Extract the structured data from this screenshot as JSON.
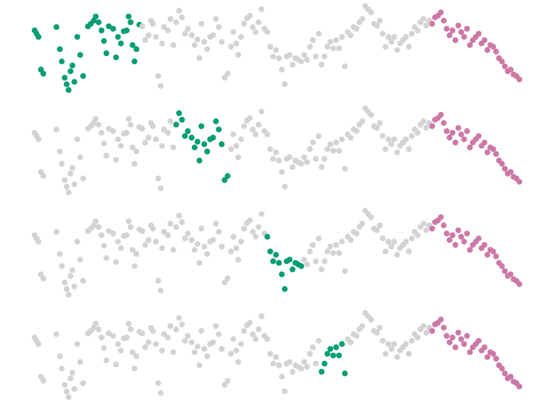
{
  "chart_data": [
    {
      "type": "scatter",
      "title": "",
      "xlabel": "",
      "ylabel": "",
      "xlim": [
        0,
        100
      ],
      "ylim": [
        0,
        100
      ],
      "axes_visible": false,
      "grid": false,
      "legend": "none",
      "series": [
        {
          "role": "background",
          "color": "#d3d3d3"
        },
        {
          "role": "highlight-window",
          "color": "#009e73",
          "x_range": [
            0,
            22
          ]
        },
        {
          "role": "reference-window",
          "color": "#cc79a7",
          "x_range": [
            82,
            100
          ]
        }
      ]
    },
    {
      "type": "scatter",
      "title": "",
      "xlabel": "",
      "ylabel": "",
      "xlim": [
        0,
        100
      ],
      "ylim": [
        0,
        100
      ],
      "axes_visible": false,
      "grid": false,
      "legend": "none",
      "series": [
        {
          "role": "background",
          "color": "#d3d3d3"
        },
        {
          "role": "highlight-window",
          "color": "#009e73",
          "x_range": [
            29,
            40
          ]
        },
        {
          "role": "reference-window",
          "color": "#cc79a7",
          "x_range": [
            82,
            100
          ]
        }
      ]
    },
    {
      "type": "scatter",
      "title": "",
      "xlabel": "",
      "ylabel": "",
      "xlim": [
        0,
        100
      ],
      "ylim": [
        0,
        100
      ],
      "axes_visible": false,
      "grid": false,
      "legend": "none",
      "series": [
        {
          "role": "background",
          "color": "#d3d3d3"
        },
        {
          "role": "highlight-window",
          "color": "#009e73",
          "x_range": [
            48,
            55
          ]
        },
        {
          "role": "reference-window",
          "color": "#cc79a7",
          "x_range": [
            82,
            100
          ]
        }
      ]
    },
    {
      "type": "scatter",
      "title": "",
      "xlabel": "",
      "ylabel": "",
      "xlim": [
        0,
        100
      ],
      "ylim": [
        0,
        100
      ],
      "axes_visible": false,
      "grid": false,
      "legend": "none",
      "series": [
        {
          "role": "background",
          "color": "#d3d3d3"
        },
        {
          "role": "highlight-window",
          "color": "#009e73",
          "x_range": [
            59,
            64
          ]
        },
        {
          "role": "reference-window",
          "color": "#cc79a7",
          "x_range": [
            82,
            100
          ]
        }
      ]
    }
  ],
  "points": [
    [
      0.0,
      78
    ],
    [
      0.4,
      74
    ],
    [
      0.8,
      70
    ],
    [
      1.3,
      30
    ],
    [
      1.8,
      25
    ],
    [
      4.5,
      82
    ],
    [
      5.2,
      55
    ],
    [
      5.6,
      40
    ],
    [
      6.2,
      20
    ],
    [
      6.6,
      12
    ],
    [
      7.0,
      5
    ],
    [
      7.4,
      28
    ],
    [
      7.8,
      35
    ],
    [
      8.2,
      15
    ],
    [
      8.8,
      70
    ],
    [
      9.4,
      48
    ],
    [
      10.0,
      22
    ],
    [
      11.0,
      83
    ],
    [
      11.6,
      86
    ],
    [
      12.2,
      90
    ],
    [
      12.6,
      95
    ],
    [
      13.2,
      88
    ],
    [
      13.8,
      78
    ],
    [
      14.3,
      65
    ],
    [
      14.8,
      50
    ],
    [
      15.3,
      83
    ],
    [
      16.2,
      80
    ],
    [
      16.8,
      45
    ],
    [
      17.2,
      70
    ],
    [
      17.8,
      62
    ],
    [
      18.4,
      77
    ],
    [
      19.0,
      78
    ],
    [
      19.4,
      95
    ],
    [
      19.8,
      88
    ],
    [
      20.2,
      60
    ],
    [
      20.6,
      40
    ],
    [
      21.0,
      55
    ],
    [
      21.6,
      85
    ],
    [
      22.2,
      83
    ],
    [
      22.8,
      66
    ],
    [
      23.5,
      72
    ],
    [
      24.0,
      90
    ],
    [
      24.4,
      86
    ],
    [
      25.0,
      70
    ],
    [
      25.5,
      22
    ],
    [
      26.0,
      10
    ],
    [
      26.3,
      62
    ],
    [
      26.7,
      82
    ],
    [
      27.5,
      78
    ],
    [
      28.0,
      92
    ],
    [
      28.6,
      60
    ],
    [
      29.2,
      88
    ],
    [
      29.8,
      102
    ],
    [
      30.4,
      94
    ],
    [
      31.0,
      74
    ],
    [
      31.6,
      80
    ],
    [
      32.4,
      72
    ],
    [
      33.0,
      60
    ],
    [
      33.6,
      67
    ],
    [
      34.0,
      44
    ],
    [
      34.4,
      86
    ],
    [
      35.0,
      64
    ],
    [
      35.6,
      55
    ],
    [
      36.2,
      70
    ],
    [
      36.8,
      72
    ],
    [
      37.4,
      92
    ],
    [
      38.0,
      82
    ],
    [
      38.6,
      64
    ],
    [
      39.2,
      20
    ],
    [
      39.8,
      25
    ],
    [
      40.5,
      58
    ],
    [
      41.0,
      76
    ],
    [
      41.6,
      62
    ],
    [
      42.0,
      48
    ],
    [
      42.6,
      70
    ],
    [
      43.2,
      86
    ],
    [
      43.8,
      93
    ],
    [
      44.4,
      96
    ],
    [
      45.0,
      82
    ],
    [
      45.6,
      76
    ],
    [
      46.2,
      88
    ],
    [
      46.8,
      104
    ],
    [
      47.4,
      80
    ],
    [
      48.0,
      76
    ],
    [
      48.6,
      58
    ],
    [
      49.2,
      46
    ],
    [
      49.8,
      54
    ],
    [
      50.4,
      44
    ],
    [
      51.0,
      30
    ],
    [
      51.6,
      12
    ],
    [
      52.0,
      46
    ],
    [
      52.6,
      48
    ],
    [
      53.2,
      36
    ],
    [
      53.8,
      44
    ],
    [
      54.4,
      42
    ],
    [
      55.0,
      40
    ],
    [
      55.6,
      48
    ],
    [
      56.2,
      42
    ],
    [
      56.8,
      58
    ],
    [
      57.4,
      66
    ],
    [
      58.0,
      46
    ],
    [
      58.6,
      74
    ],
    [
      59.2,
      36
    ],
    [
      59.8,
      46
    ],
    [
      60.4,
      58
    ],
    [
      61.0,
      64
    ],
    [
      61.6,
      56
    ],
    [
      62.2,
      66
    ],
    [
      62.8,
      56
    ],
    [
      63.4,
      70
    ],
    [
      64.0,
      34
    ],
    [
      64.6,
      76
    ],
    [
      65.2,
      72
    ],
    [
      65.8,
      82
    ],
    [
      66.4,
      80
    ],
    [
      67.0,
      88
    ],
    [
      67.6,
      92
    ],
    [
      68.2,
      108
    ],
    [
      68.8,
      104
    ],
    [
      69.4,
      100
    ],
    [
      70.0,
      86
    ],
    [
      70.6,
      84
    ],
    [
      71.2,
      90
    ],
    [
      71.8,
      74
    ],
    [
      72.4,
      58
    ],
    [
      73.0,
      70
    ],
    [
      73.6,
      64
    ],
    [
      74.2,
      70
    ],
    [
      74.8,
      54
    ],
    [
      75.4,
      62
    ],
    [
      76.0,
      66
    ],
    [
      76.6,
      70
    ],
    [
      77.2,
      58
    ],
    [
      77.8,
      74
    ],
    [
      78.4,
      82
    ],
    [
      79.0,
      78
    ],
    [
      79.6,
      88
    ],
    [
      80.2,
      92
    ],
    [
      80.8,
      84
    ],
    [
      81.4,
      90
    ],
    [
      82.0,
      86
    ],
    [
      82.6,
      94
    ],
    [
      83.2,
      96
    ],
    [
      83.8,
      100
    ],
    [
      84.4,
      90
    ],
    [
      85.0,
      80
    ],
    [
      85.6,
      72
    ],
    [
      86.2,
      78
    ],
    [
      86.8,
      66
    ],
    [
      87.4,
      84
    ],
    [
      88.0,
      76
    ],
    [
      88.6,
      70
    ],
    [
      89.2,
      80
    ],
    [
      89.8,
      60
    ],
    [
      90.4,
      66
    ],
    [
      91.0,
      70
    ],
    [
      91.6,
      74
    ],
    [
      92.2,
      62
    ],
    [
      92.8,
      66
    ],
    [
      93.4,
      54
    ],
    [
      94.0,
      60
    ],
    [
      94.6,
      58
    ],
    [
      95.2,
      52
    ],
    [
      95.8,
      44
    ],
    [
      96.4,
      40
    ],
    [
      97.0,
      34
    ],
    [
      97.6,
      28
    ],
    [
      98.2,
      30
    ],
    [
      98.8,
      24
    ],
    [
      99.4,
      22
    ],
    [
      100.0,
      18
    ]
  ]
}
